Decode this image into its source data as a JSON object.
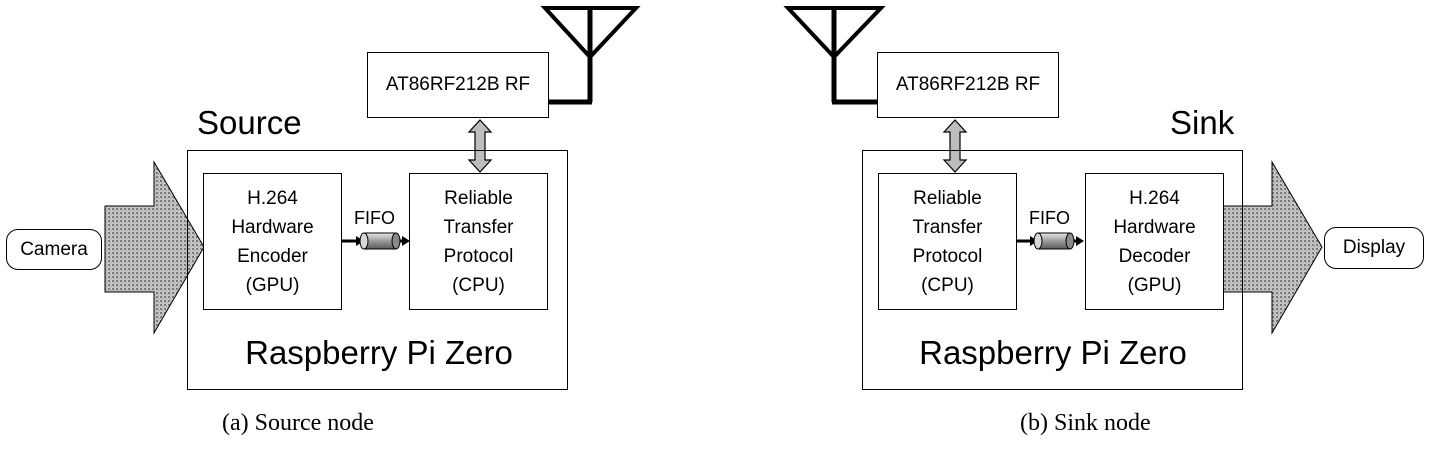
{
  "source": {
    "title": "Source",
    "rf_label": "AT86RF212B RF",
    "board_label": "Raspberry Pi Zero",
    "left_block": "H.264\nHardware\nEncoder\n(GPU)",
    "right_block": "Reliable\nTransfer\nProtocol\n(CPU)",
    "fifo_label": "FIFO",
    "io_label": "Camera",
    "caption": "(a)  Source node"
  },
  "sink": {
    "title": "Sink",
    "rf_label": "AT86RF212B RF",
    "board_label": "Raspberry Pi Zero",
    "left_block": "Reliable\nTransfer\nProtocol\n(CPU)",
    "right_block": "H.264\nHardware\nDecoder\n(GPU)",
    "fifo_label": "FIFO",
    "io_label": "Display",
    "caption": "(b)  Sink node"
  }
}
